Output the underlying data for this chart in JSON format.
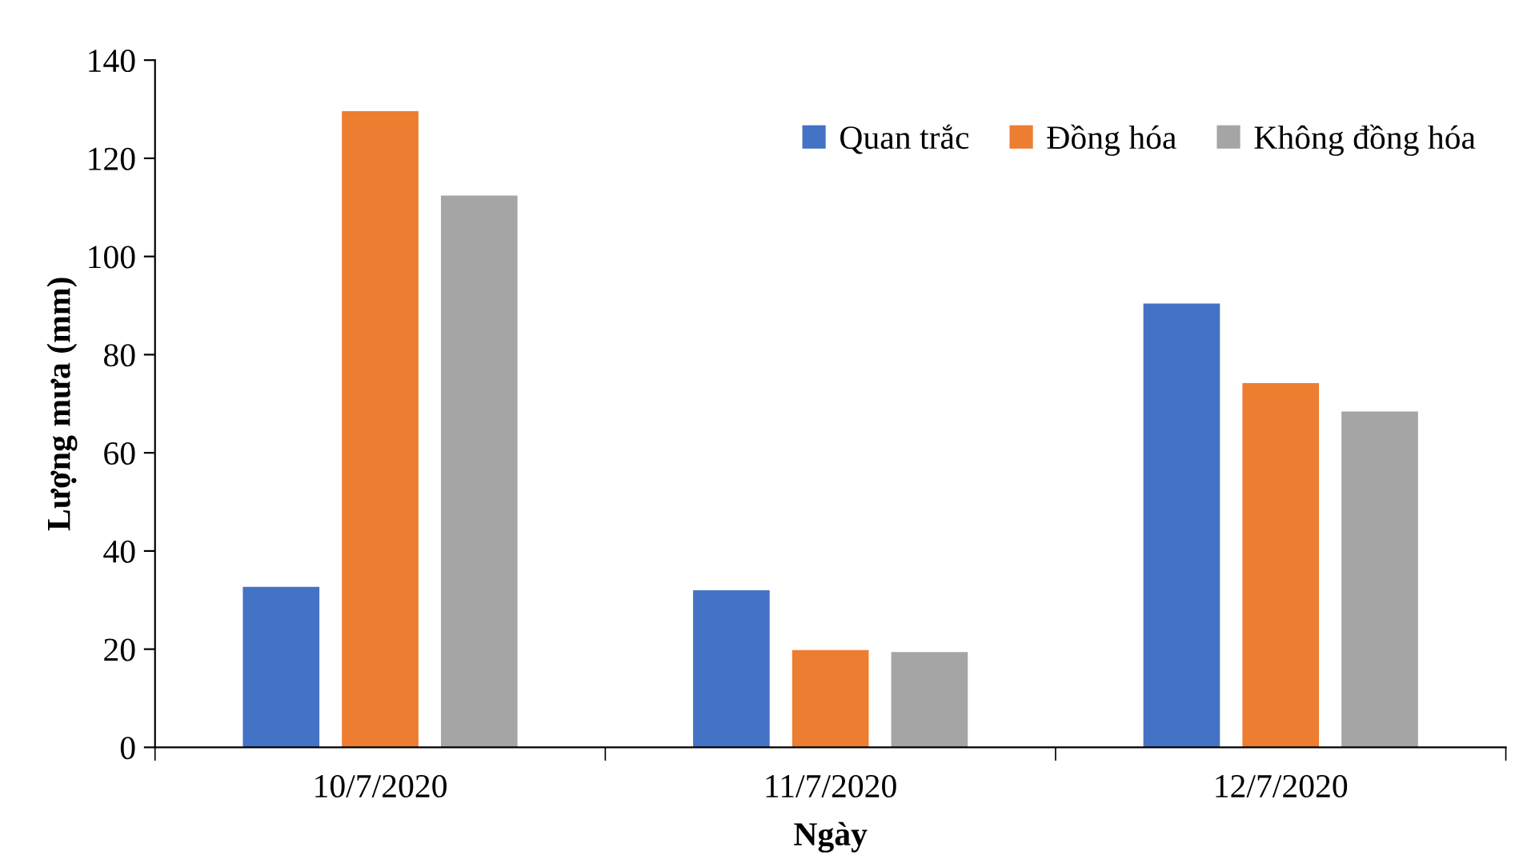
{
  "chart_data": {
    "type": "bar",
    "xlabel": "Ngày",
    "ylabel": "Lượng mưa (mm)",
    "categories": [
      "10/7/2020",
      "11/7/2020",
      "12/7/2020"
    ],
    "series": [
      {
        "name": "Quan trắc",
        "color": "#4472c4",
        "values": [
          32.7,
          32,
          90.4
        ]
      },
      {
        "name": "Đồng hóa",
        "color": "#ed7d31",
        "values": [
          129.6,
          19.8,
          74.2
        ]
      },
      {
        "name": "Không đồng hóa",
        "color": "#a5a5a5",
        "values": [
          112.4,
          19.4,
          68.4
        ]
      }
    ],
    "ylim": [
      0,
      140
    ],
    "yticks": [
      0,
      20,
      40,
      60,
      80,
      100,
      120,
      140
    ],
    "grid": false,
    "legend": "top right"
  }
}
